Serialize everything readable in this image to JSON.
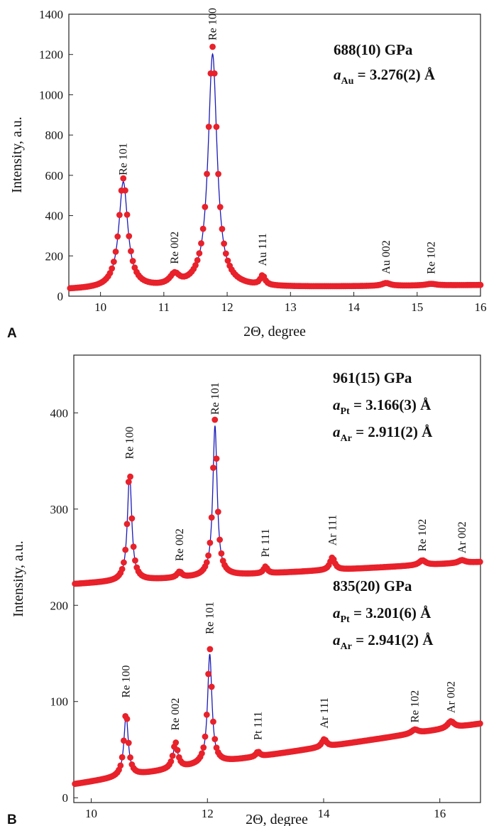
{
  "chart_data": [
    {
      "panel": "A",
      "type": "scatter",
      "xlabel": "2Θ, degree",
      "ylabel": "Intensity, a.u.",
      "xlim": [
        9.5,
        16
      ],
      "ylim": [
        0,
        1400
      ],
      "xticks": [
        10,
        11,
        12,
        13,
        14,
        15,
        16
      ],
      "yticks": [
        0,
        200,
        400,
        600,
        800,
        1000,
        1200,
        1400
      ],
      "background": 32,
      "background_end": 55,
      "point_start": 9.52,
      "point_step": 0.03,
      "fit_scale": 0.97,
      "peaks": [
        {
          "label": "Re 101",
          "x": 10.36,
          "h": 545,
          "w": 0.085
        },
        {
          "label": "Re 002",
          "x": 11.17,
          "h": 52,
          "w": 0.09
        },
        {
          "label": "Re 100",
          "x": 11.77,
          "h": 1195,
          "w": 0.085
        },
        {
          "label": "Au 111",
          "x": 12.56,
          "h": 48,
          "w": 0.045
        },
        {
          "label": "Au 002",
          "x": 14.51,
          "h": 14,
          "w": 0.08
        },
        {
          "label": "Re 102",
          "x": 15.22,
          "h": 8,
          "w": 0.1
        }
      ],
      "peak_labels": [
        {
          "text": "Re 101",
          "x": 10.36,
          "y": 600
        },
        {
          "text": "Re 002",
          "x": 11.17,
          "y": 160
        },
        {
          "text": "Re 100",
          "x": 11.77,
          "y": 1270
        },
        {
          "text": "Au 111",
          "x": 12.56,
          "y": 150
        },
        {
          "text": "Au 002",
          "x": 14.51,
          "y": 110
        },
        {
          "text": "Re 102",
          "x": 15.22,
          "y": 110
        }
      ],
      "annotation": [
        {
          "segments": [
            {
              "t": "688(10) GPa"
            }
          ]
        },
        {
          "segments": [
            {
              "t": "a",
              "italic": true
            },
            {
              "t": "Au",
              "sub": true
            },
            {
              "t": " = 3.276(2) Å"
            }
          ]
        }
      ],
      "colors": {
        "points": "#e8212a",
        "fit": "#1a1ab8"
      }
    },
    {
      "panel": "B",
      "type": "scatter",
      "xlabel": "2Θ, degree",
      "ylabel": "Intensity, a.u.",
      "xlim": [
        9.7,
        16.7
      ],
      "ylim": [
        -5,
        460
      ],
      "xticks": [
        10,
        12,
        14,
        16
      ],
      "yticks": [
        0,
        100,
        200,
        300,
        400
      ],
      "series": [
        {
          "pressure": "961(15) GPa",
          "background": 222,
          "background_end": 245,
          "point_start": 9.72,
          "point_step": 0.028,
          "fit_scale": 0.96,
          "peaks": [
            {
              "label": "Re 100",
              "x": 10.66,
              "h": 116,
              "w": 0.045
            },
            {
              "label": "Re 002",
              "x": 11.52,
              "h": 6,
              "w": 0.05
            },
            {
              "label": "Re 101",
              "x": 12.13,
              "h": 163,
              "w": 0.045
            },
            {
              "label": "Pt 111",
              "x": 13.0,
              "h": 7,
              "w": 0.04
            },
            {
              "label": "Ar 111",
              "x": 14.15,
              "h": 13,
              "w": 0.05
            },
            {
              "label": "Re 102",
              "x": 15.7,
              "h": 5,
              "w": 0.07
            },
            {
              "label": "Ar 002",
              "x": 16.38,
              "h": 3,
              "w": 0.07
            }
          ],
          "peak_labels": [
            {
              "text": "Re 100",
              "x": 10.66,
              "y": 352
            },
            {
              "text": "Re 002",
              "x": 11.52,
              "y": 246
            },
            {
              "text": "Re 101",
              "x": 12.13,
              "y": 398
            },
            {
              "text": "Pt 111",
              "x": 13.0,
              "y": 250
            },
            {
              "text": "Ar 111",
              "x": 14.15,
              "y": 262
            },
            {
              "text": "Re 102",
              "x": 15.7,
              "y": 256
            },
            {
              "text": "Ar 002",
              "x": 16.38,
              "y": 254
            }
          ],
          "annotation": [
            {
              "segments": [
                {
                  "t": "961(15) GPa"
                }
              ]
            },
            {
              "segments": [
                {
                  "t": "a",
                  "italic": true
                },
                {
                  "t": "Pt",
                  "sub": true
                },
                {
                  "t": " = 3.166(3) Å"
                }
              ]
            },
            {
              "segments": [
                {
                  "t": "a",
                  "italic": true
                },
                {
                  "t": "Ar",
                  "sub": true
                },
                {
                  "t": " = 2.911(2) Å"
                }
              ]
            }
          ]
        },
        {
          "pressure": "835(20) GPa",
          "background": 14,
          "background_end": 77,
          "point_start": 9.72,
          "point_step": 0.028,
          "fit_scale": 0.95,
          "peaks": [
            {
              "label": "Re 100",
              "x": 10.6,
              "h": 67,
              "w": 0.045
            },
            {
              "label": "Re 002",
              "x": 11.45,
              "h": 27,
              "w": 0.05
            },
            {
              "label": "Re 101",
              "x": 12.04,
              "h": 120,
              "w": 0.045
            },
            {
              "label": "Pt 111",
              "x": 12.87,
              "h": 5,
              "w": 0.04
            },
            {
              "label": "Ar 111",
              "x": 14.01,
              "h": 8,
              "w": 0.05
            },
            {
              "label": "Re 102",
              "x": 15.57,
              "h": 4,
              "w": 0.07
            },
            {
              "label": "Ar 002",
              "x": 16.19,
              "h": 7,
              "w": 0.07
            }
          ],
          "peak_labels": [
            {
              "text": "Re 100",
              "x": 10.6,
              "y": 104
            },
            {
              "text": "Re 002",
              "x": 11.45,
              "y": 70
            },
            {
              "text": "Re 101",
              "x": 12.04,
              "y": 170
            },
            {
              "text": "Pt 111",
              "x": 12.87,
              "y": 60
            },
            {
              "text": "Ar 111",
              "x": 14.01,
              "y": 72
            },
            {
              "text": "Re 102",
              "x": 15.57,
              "y": 78
            },
            {
              "text": "Ar 002",
              "x": 16.19,
              "y": 88
            }
          ],
          "annotation": [
            {
              "segments": [
                {
                  "t": "835(20) GPa"
                }
              ]
            },
            {
              "segments": [
                {
                  "t": "a",
                  "italic": true
                },
                {
                  "t": "Pt",
                  "sub": true
                },
                {
                  "t": " = 3.201(6) Å"
                }
              ]
            },
            {
              "segments": [
                {
                  "t": "a",
                  "italic": true
                },
                {
                  "t": "Ar",
                  "sub": true
                },
                {
                  "t": " = 2.941(2) Å"
                }
              ]
            }
          ]
        }
      ],
      "colors": {
        "points": "#e8212a",
        "fit": "#1a1ab8"
      }
    }
  ]
}
